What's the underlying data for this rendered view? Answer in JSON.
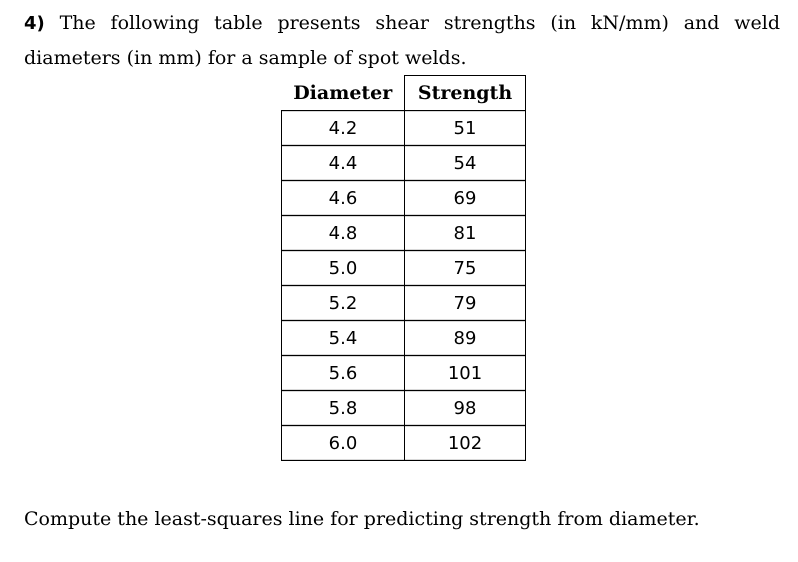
{
  "problem": {
    "number": "4)",
    "text": "The following table presents shear strengths (in kN/mm) and weld diameters (in mm) for a sample of spot welds."
  },
  "table": {
    "headers": [
      "Diameter",
      "Strength"
    ],
    "rows": [
      [
        "4.2",
        "51"
      ],
      [
        "4.4",
        "54"
      ],
      [
        "4.6",
        "69"
      ],
      [
        "4.8",
        "81"
      ],
      [
        "5.0",
        "75"
      ],
      [
        "5.2",
        "79"
      ],
      [
        "5.4",
        "89"
      ],
      [
        "5.6",
        "101"
      ],
      [
        "5.8",
        "98"
      ],
      [
        "6.0",
        "102"
      ]
    ]
  },
  "question": "Compute the least-squares line for predicting strength from diameter."
}
